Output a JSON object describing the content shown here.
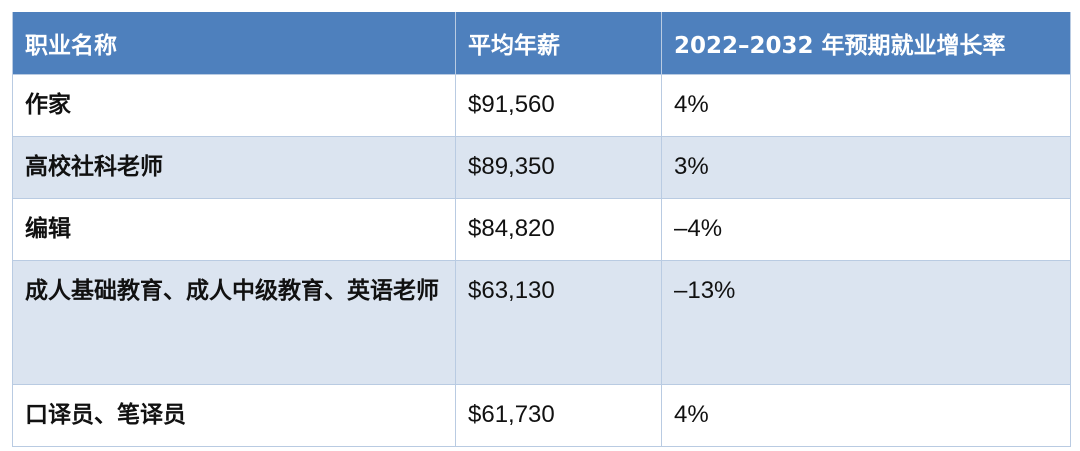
{
  "table": {
    "headers": [
      "职业名称",
      "平均年薪",
      "2022–2032 年预期就业增长率"
    ],
    "rows": [
      {
        "name": "作家",
        "salary": "$91,560",
        "growth": "4%"
      },
      {
        "name": "高校社科老师",
        "salary": "$89,350",
        "growth": "3%"
      },
      {
        "name": "编辑",
        "salary": "$84,820",
        "growth": "–4%"
      },
      {
        "name": "成人基础教育、成人中级教育、英语老师",
        "salary": "$63,130",
        "growth": "–13%"
      },
      {
        "name": "口译员、笔译员",
        "salary": "$61,730",
        "growth": "4%"
      }
    ]
  },
  "colors": {
    "header_bg": "#4e80bd",
    "header_text": "#ffffff",
    "stripe_bg": "#dbe4f0",
    "border": "#b9cbe2"
  }
}
